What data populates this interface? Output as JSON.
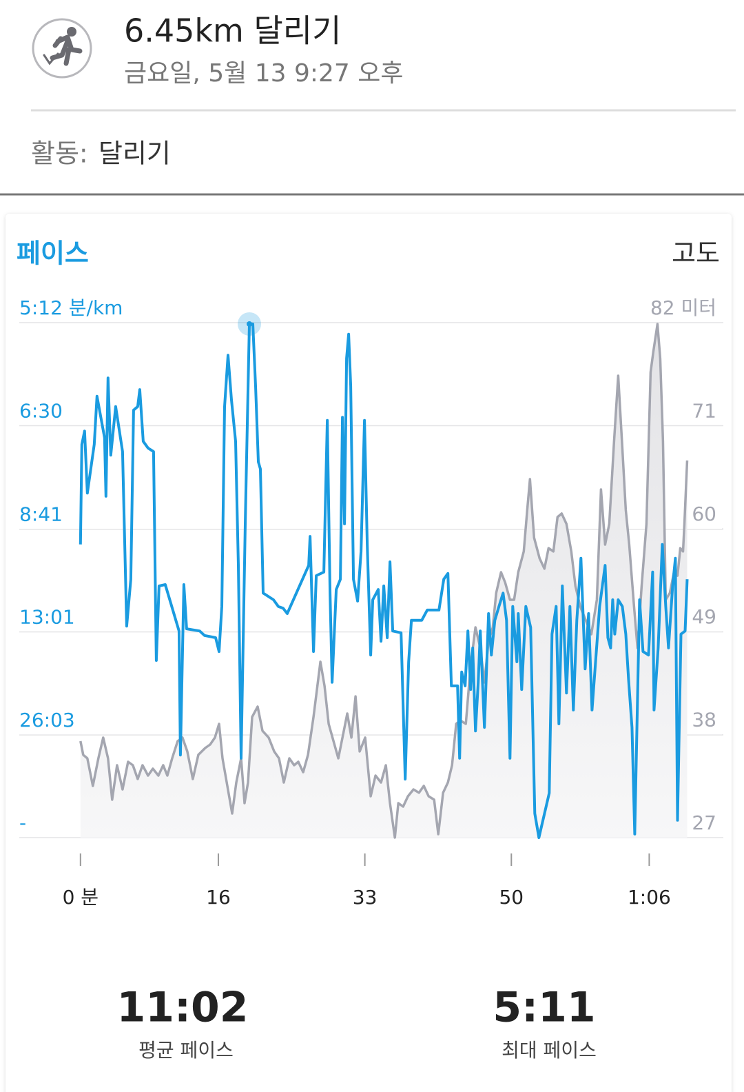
{
  "header": {
    "title": "6.45km 달리기",
    "subtitle": "금요일, 5월 13 9:27 오후"
  },
  "activity": {
    "label": "활동:",
    "value": "달리기"
  },
  "chart_data": {
    "type": "line",
    "xlim": [
      -7.1,
      74.6
    ],
    "xticks": [
      {
        "value": 0,
        "label": "0 분"
      },
      16,
      33,
      50,
      {
        "value": 66,
        "label": "1:06"
      }
    ],
    "ylim": [
      0,
      11.54
    ],
    "yticks": [
      {
        "value": 11.54,
        "label": "5:12 분/km"
      },
      {
        "value": 9.23,
        "label": "6:30"
      },
      {
        "value": 6.91,
        "label": "8:41"
      },
      {
        "value": 4.61,
        "label": "13:01"
      },
      {
        "value": 2.3,
        "label": "26:03"
      },
      {
        "value": 0,
        "label": "-"
      }
    ],
    "y2lim": [
      27,
      82
    ],
    "y2ticks": [
      27,
      38,
      49,
      60,
      71,
      {
        "value": 82,
        "label": "82 미터"
      }
    ],
    "grid": true,
    "series": [
      {
        "name": "페이스",
        "color": "#1a9be0",
        "x": [
          0,
          0.16,
          0.48,
          0.8,
          1.6,
          1.92,
          2.8,
          2.96,
          3.2,
          3.52,
          4.08,
          4.88,
          5.36,
          5.84,
          6.16,
          6.64,
          6.88,
          7.28,
          7.84,
          8.48,
          8.8,
          9.12,
          9.84,
          11.44,
          11.6,
          12.0,
          12.32,
          13.84,
          14.4,
          15.68,
          16.08,
          16.4,
          16.72,
          17.12,
          17.52,
          18.0,
          18.32,
          18.64,
          19.12,
          19.6,
          20.0,
          20.32,
          20.64,
          20.88,
          21.2,
          22.4,
          22.96,
          23.52,
          24.0,
          26.48,
          26.64,
          27.04,
          27.36,
          28.24,
          28.64,
          28.96,
          29.2,
          29.68,
          30.16,
          30.4,
          30.64,
          30.88,
          31.12,
          31.36,
          31.68,
          32.16,
          32.56,
          32.96,
          33.28,
          33.68,
          33.92,
          34.56,
          34.88,
          35.2,
          35.6,
          35.92,
          36.24,
          37.2,
          37.68,
          38.08,
          38.4,
          39.6,
          40.24,
          41.6,
          42.16,
          42.64,
          43.04,
          43.76,
          44.0,
          44.24,
          44.64,
          44.96,
          45.28,
          45.52,
          45.84,
          46.16,
          46.4,
          46.88,
          47.36,
          47.68,
          48.08,
          48.56,
          49.04,
          49.44,
          49.84,
          50.16,
          50.64,
          50.8,
          51.2,
          51.68,
          52.24,
          52.72,
          53.2,
          54.4,
          54.72,
          55.2,
          55.52,
          55.92,
          56.4,
          56.8,
          57.2,
          57.6,
          58.08,
          58.56,
          58.96,
          59.36,
          59.92,
          60.24,
          60.88,
          61.2,
          61.52,
          61.76,
          62.0,
          62.4,
          62.88,
          63.28,
          63.6,
          64.0,
          64.32,
          64.88,
          65.28,
          65.92,
          66.4,
          66.56,
          67.04,
          67.52,
          67.92,
          68.24,
          68.72,
          69.04,
          69.28,
          69.68,
          70.16,
          70.4
        ],
        "values": [
          6.57,
          8.81,
          9.11,
          7.72,
          8.81,
          9.89,
          8.96,
          7.65,
          10.3,
          8.57,
          9.66,
          8.65,
          4.74,
          5.79,
          9.58,
          9.66,
          10.04,
          8.88,
          8.73,
          8.65,
          3.97,
          5.64,
          5.67,
          4.63,
          1.85,
          5.67,
          4.68,
          4.63,
          4.53,
          4.48,
          4.17,
          5.18,
          9.66,
          10.81,
          9.81,
          8.88,
          6.1,
          1.78,
          7.03,
          11.51,
          11.51,
          10.12,
          8.42,
          8.26,
          5.48,
          5.33,
          5.18,
          5.14,
          5.02,
          6.1,
          6.75,
          4.17,
          5.87,
          5.95,
          9.35,
          5.48,
          3.48,
          5.56,
          5.79,
          9.42,
          7.03,
          10.74,
          11.28,
          10.12,
          5.79,
          5.3,
          6.41,
          9.35,
          6.57,
          4.09,
          5.33,
          5.56,
          4.4,
          5.64,
          4.48,
          6.18,
          4.63,
          4.59,
          1.31,
          3.94,
          4.87,
          4.87,
          5.1,
          5.1,
          5.79,
          5.92,
          3.4,
          3.4,
          1.78,
          3.71,
          3.4,
          4.63,
          3.32,
          4.25,
          2.39,
          3.48,
          4.63,
          2.47,
          5.02,
          4.09,
          4.87,
          5.18,
          5.48,
          4.87,
          1.78,
          5.18,
          3.94,
          5.02,
          3.32,
          5.18,
          4.71,
          0.54,
          0,
          1.0,
          4.56,
          5.18,
          2.55,
          5.64,
          3.24,
          5.18,
          2.86,
          4.87,
          6.26,
          3.78,
          5.02,
          2.86,
          4.33,
          5.18,
          6.1,
          4.48,
          4.25,
          5.33,
          4.56,
          5.33,
          5.18,
          4.56,
          3.55,
          2.47,
          0.08,
          5.33,
          4.17,
          4.09,
          5.95,
          2.86,
          4.25,
          6.57,
          5.18,
          4.25,
          5.64,
          6.26,
          0.39,
          4.56,
          4.63,
          5.79
        ]
      },
      {
        "name": "고도",
        "color": "#a4a6b0",
        "axis": "y2",
        "x": [
          0,
          0.32,
          0.8,
          1.44,
          2.08,
          2.64,
          3.2,
          3.68,
          4.24,
          4.88,
          5.52,
          6.08,
          6.64,
          7.2,
          7.84,
          8.4,
          9.04,
          9.6,
          10.08,
          10.64,
          11.28,
          11.84,
          12.4,
          13.04,
          13.68,
          14.48,
          15.04,
          15.6,
          16.08,
          16.48,
          17.04,
          17.6,
          18.08,
          18.64,
          19.04,
          19.44,
          19.92,
          20.56,
          21.12,
          21.84,
          22.48,
          23.04,
          23.6,
          24.24,
          24.8,
          25.28,
          25.84,
          26.4,
          27.04,
          27.44,
          27.84,
          28.32,
          28.8,
          29.36,
          29.92,
          30.48,
          30.96,
          31.44,
          31.92,
          32.4,
          33.04,
          33.68,
          34.24,
          34.88,
          35.44,
          35.92,
          36.48,
          36.88,
          37.44,
          38.0,
          38.64,
          39.28,
          39.84,
          40.4,
          41.04,
          41.52,
          42.08,
          42.64,
          43.12,
          43.6,
          44.08,
          44.72,
          45.28,
          45.84,
          46.4,
          46.88,
          47.36,
          47.84,
          48.24,
          48.8,
          49.28,
          49.84,
          50.32,
          50.8,
          51.44,
          51.84,
          52.16,
          52.64,
          53.28,
          53.84,
          54.32,
          54.88,
          55.36,
          55.84,
          56.4,
          56.96,
          57.44,
          58.0,
          58.64,
          59.28,
          59.92,
          60.4,
          60.88,
          61.36,
          61.92,
          62.4,
          62.88,
          63.28,
          63.68,
          64.24,
          64.64,
          65.12,
          65.68,
          66.16,
          66.48,
          66.96,
          67.28,
          67.6,
          67.92,
          68.4,
          68.88,
          69.28,
          69.6,
          69.92,
          70.08,
          70.4
        ],
        "values": [
          37.31,
          35.84,
          35.47,
          32.52,
          35.47,
          37.68,
          35.47,
          31.05,
          34.73,
          32.15,
          35.1,
          34.73,
          33.26,
          34.73,
          33.63,
          34.36,
          33.63,
          34.73,
          33.63,
          35.47,
          37.31,
          37.68,
          36.2,
          33.26,
          35.84,
          36.57,
          36.94,
          37.68,
          39.15,
          35.47,
          32.52,
          29.58,
          32.89,
          35.47,
          30.68,
          32.89,
          39.89,
          40.99,
          38.41,
          37.68,
          36.2,
          35.47,
          32.89,
          35.47,
          34.73,
          35.1,
          33.99,
          35.84,
          39.89,
          42.83,
          45.78,
          43.2,
          39.15,
          37.31,
          35.47,
          38.04,
          40.25,
          37.68,
          42.09,
          36.2,
          37.68,
          31.42,
          33.63,
          32.89,
          34.73,
          30.68,
          27,
          30.68,
          30.31,
          31.42,
          32.15,
          31.79,
          32.52,
          31.42,
          31.05,
          27.37,
          31.79,
          32.89,
          34.73,
          39.15,
          39.52,
          39.15,
          45.41,
          49.46,
          47.25,
          43.57,
          47.98,
          49.46,
          53.14,
          55.35,
          54.24,
          52.4,
          52.4,
          55.35,
          57.56,
          61.97,
          65.29,
          59.03,
          56.82,
          55.72,
          57.92,
          57.56,
          61.24,
          61.61,
          60.5,
          57.56,
          53.87,
          51.67,
          50.19,
          48.72,
          52.4,
          64.18,
          58.29,
          60.5,
          69.34,
          76.33,
          68.6,
          61.97,
          58.29,
          51.67,
          47.25,
          53.87,
          60.5,
          76.7,
          78.91,
          81.85,
          78.17,
          69.34,
          52.4,
          53.14,
          55.35,
          54.98,
          57.92,
          57.56,
          60.5,
          67.28
        ]
      }
    ]
  },
  "stats": [
    {
      "value": "11:02",
      "label": "평균 페이스"
    },
    {
      "value": "5:11",
      "label": "최대 페이스"
    }
  ]
}
